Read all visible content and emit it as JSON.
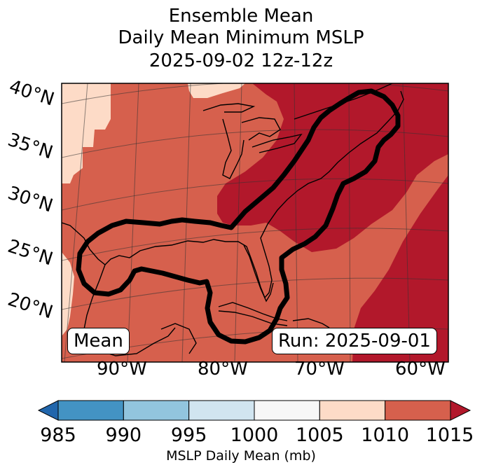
{
  "title": {
    "line1": "Ensemble Mean",
    "line2": "Daily Mean Minimum MSLP",
    "line3": "2025-09-02 12z-12z"
  },
  "map": {
    "lat_labels": [
      "40°N",
      "35°N",
      "30°N",
      "25°N",
      "20°N"
    ],
    "lon_labels": [
      "90°W",
      "80°W",
      "70°W",
      "60°W"
    ],
    "mean_badge": "Mean",
    "run_badge": "Run: 2025-09-01",
    "colors": {
      "c1005_1010": "#fddbc7",
      "c1010_1015": "#d6604d",
      "c1015_plus": "#b2182b",
      "contour": "#000000",
      "coast": "#000000"
    }
  },
  "colorbar": {
    "ticks": [
      "985",
      "990",
      "995",
      "1000",
      "1005",
      "1010",
      "1015"
    ],
    "label": "MSLP Daily Mean (mb)",
    "colors": [
      "#2166ac",
      "#4393c3",
      "#92c5de",
      "#d1e5f0",
      "#f7f7f7",
      "#fddbc7",
      "#d6604d",
      "#b2182b"
    ]
  }
}
